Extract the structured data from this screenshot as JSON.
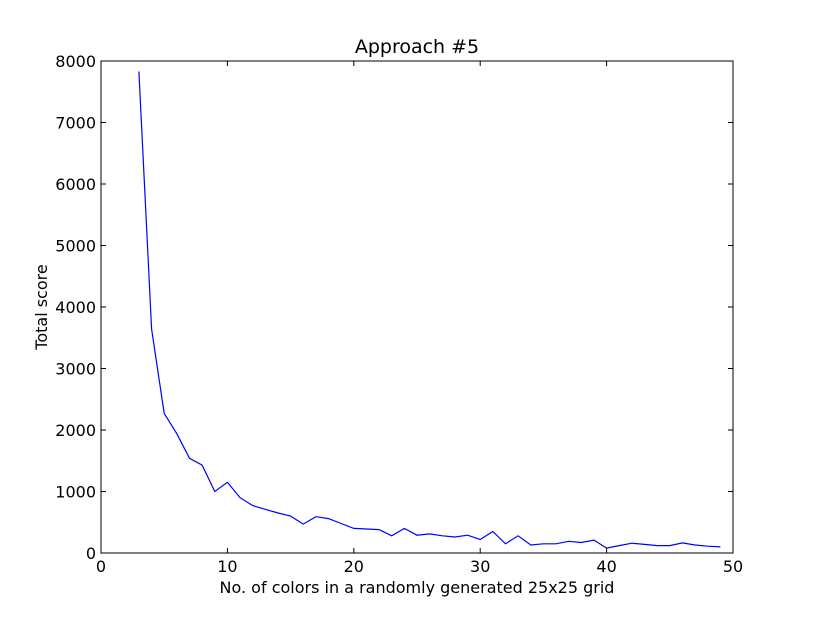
{
  "chart_data": {
    "type": "line",
    "title": "Approach #5",
    "xlabel": "No. of colors in a randomly generated 25x25 grid",
    "ylabel": "Total score",
    "xlim": [
      0,
      50
    ],
    "ylim": [
      0,
      8000
    ],
    "xticks": [
      0,
      10,
      20,
      30,
      40,
      50
    ],
    "yticks": [
      0,
      1000,
      2000,
      3000,
      4000,
      5000,
      6000,
      7000,
      8000
    ],
    "grid": false,
    "line_color": "#0000ff",
    "series": [
      {
        "x": [
          3,
          4,
          5,
          6,
          7,
          8,
          9,
          10,
          11,
          12,
          13,
          14,
          15,
          16,
          17,
          18,
          19,
          20,
          21,
          22,
          23,
          24,
          25,
          26,
          27,
          28,
          29,
          30,
          31,
          32,
          33,
          34,
          35,
          36,
          37,
          38,
          39,
          40,
          41,
          42,
          43,
          44,
          45,
          46,
          47,
          48,
          49
        ],
        "values": [
          7830,
          3640,
          2270,
          1940,
          1540,
          1430,
          1000,
          1150,
          900,
          770,
          710,
          650,
          600,
          470,
          590,
          560,
          480,
          400,
          390,
          380,
          280,
          400,
          290,
          310,
          280,
          260,
          290,
          220,
          350,
          150,
          280,
          130,
          150,
          150,
          190,
          170,
          210,
          80,
          120,
          160,
          140,
          120,
          120,
          165,
          130,
          110,
          100
        ]
      }
    ]
  }
}
